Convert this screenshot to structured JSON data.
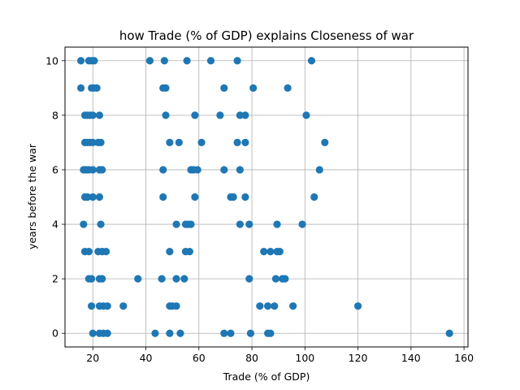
{
  "chart_data": {
    "type": "scatter",
    "title": "how Trade (% of GDP) explains Closeness of war",
    "xlabel": "Trade (% of GDP)",
    "ylabel": "years before the war",
    "xlim": [
      9.5,
      161.5
    ],
    "ylim": [
      -0.5,
      10.5
    ],
    "xticks": [
      20,
      40,
      60,
      80,
      100,
      120,
      140,
      160
    ],
    "yticks": [
      0,
      2,
      4,
      6,
      8,
      10
    ],
    "grid": true,
    "marker_color": "#1f77b4",
    "points": [
      [
        15.5,
        10
      ],
      [
        18.5,
        10
      ],
      [
        19.5,
        10
      ],
      [
        20.5,
        10
      ],
      [
        41.5,
        10
      ],
      [
        47,
        10
      ],
      [
        55.5,
        10
      ],
      [
        64.5,
        10
      ],
      [
        74.5,
        10
      ],
      [
        102.5,
        10
      ],
      [
        15.5,
        9
      ],
      [
        19.5,
        9
      ],
      [
        20.5,
        9
      ],
      [
        21.5,
        9
      ],
      [
        46.5,
        9
      ],
      [
        47.5,
        9
      ],
      [
        69.5,
        9
      ],
      [
        80.5,
        9
      ],
      [
        93.5,
        9
      ],
      [
        17,
        8
      ],
      [
        18,
        8
      ],
      [
        19,
        8
      ],
      [
        20,
        8
      ],
      [
        22.5,
        8
      ],
      [
        47.5,
        8
      ],
      [
        58.5,
        8
      ],
      [
        68,
        8
      ],
      [
        75.5,
        8
      ],
      [
        77.5,
        8
      ],
      [
        100.5,
        8
      ],
      [
        17,
        7
      ],
      [
        18,
        7
      ],
      [
        19,
        7
      ],
      [
        20,
        7
      ],
      [
        22,
        7
      ],
      [
        23,
        7
      ],
      [
        49,
        7
      ],
      [
        52.5,
        7
      ],
      [
        61,
        7
      ],
      [
        74.5,
        7
      ],
      [
        77.5,
        7
      ],
      [
        107.5,
        7
      ],
      [
        16.5,
        6
      ],
      [
        17.5,
        6
      ],
      [
        18.5,
        6
      ],
      [
        20,
        6
      ],
      [
        22.5,
        6
      ],
      [
        23.5,
        6
      ],
      [
        46.5,
        6
      ],
      [
        57,
        6
      ],
      [
        58,
        6
      ],
      [
        59.5,
        6
      ],
      [
        69.5,
        6
      ],
      [
        75.5,
        6
      ],
      [
        105.5,
        6
      ],
      [
        17,
        5
      ],
      [
        18,
        5
      ],
      [
        20,
        5
      ],
      [
        22.5,
        5
      ],
      [
        46.5,
        5
      ],
      [
        58.5,
        5
      ],
      [
        72,
        5
      ],
      [
        73,
        5
      ],
      [
        77.5,
        5
      ],
      [
        103.5,
        5
      ],
      [
        16.5,
        4
      ],
      [
        23,
        4
      ],
      [
        51.5,
        4
      ],
      [
        55,
        4
      ],
      [
        56,
        4
      ],
      [
        57,
        4
      ],
      [
        75.5,
        4
      ],
      [
        79,
        4
      ],
      [
        89.5,
        4
      ],
      [
        99,
        4
      ],
      [
        17,
        3
      ],
      [
        18.5,
        3
      ],
      [
        22,
        3
      ],
      [
        23.5,
        3
      ],
      [
        25,
        3
      ],
      [
        49,
        3
      ],
      [
        55,
        3
      ],
      [
        56.5,
        3
      ],
      [
        84.5,
        3
      ],
      [
        87,
        3
      ],
      [
        89.5,
        3
      ],
      [
        90.5,
        3
      ],
      [
        18.5,
        2
      ],
      [
        19.5,
        2
      ],
      [
        22.5,
        2
      ],
      [
        23.5,
        2
      ],
      [
        37,
        2
      ],
      [
        46,
        2
      ],
      [
        51.5,
        2
      ],
      [
        54.5,
        2
      ],
      [
        79,
        2
      ],
      [
        89,
        2
      ],
      [
        91.5,
        2
      ],
      [
        92.5,
        2
      ],
      [
        19.5,
        1
      ],
      [
        22.5,
        1
      ],
      [
        24,
        1
      ],
      [
        25.5,
        1
      ],
      [
        31.5,
        1
      ],
      [
        49,
        1
      ],
      [
        50,
        1
      ],
      [
        51.5,
        1
      ],
      [
        83,
        1
      ],
      [
        86,
        1
      ],
      [
        88.5,
        1
      ],
      [
        95.5,
        1
      ],
      [
        120,
        1
      ],
      [
        20,
        0
      ],
      [
        22.5,
        0
      ],
      [
        24,
        0
      ],
      [
        25.5,
        0
      ],
      [
        43.5,
        0
      ],
      [
        49,
        0
      ],
      [
        53,
        0
      ],
      [
        69.5,
        0
      ],
      [
        72,
        0
      ],
      [
        79.5,
        0
      ],
      [
        86,
        0
      ],
      [
        87,
        0
      ],
      [
        154.5,
        0
      ]
    ]
  }
}
